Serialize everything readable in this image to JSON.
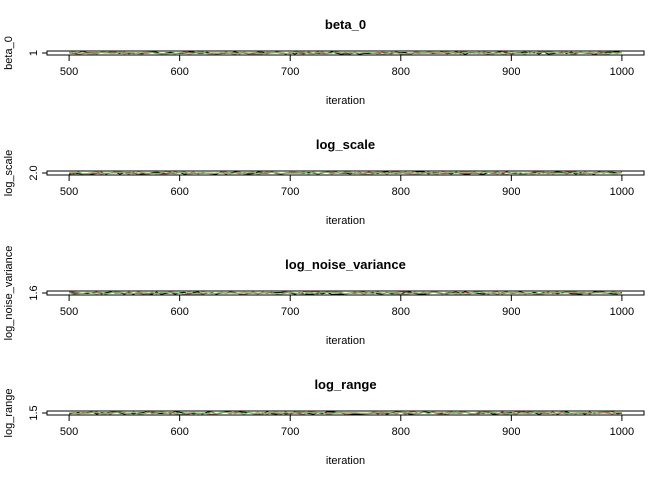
{
  "chart_data": [
    {
      "type": "line",
      "title": "beta_0",
      "xlabel": "iteration",
      "ylabel": "beta_0",
      "xlim": [
        480,
        1020
      ],
      "x_ticks": [
        "500",
        "600",
        "700",
        "800",
        "900",
        "1000"
      ],
      "y_ticks": [
        "1"
      ],
      "y_center": 1,
      "x_range": [
        500,
        1000
      ],
      "series_colors": [
        "#000000",
        "#DF536B",
        "#61D04F"
      ],
      "ylim": [
        0.99,
        1.01
      ]
    },
    {
      "type": "line",
      "title": "log_scale",
      "xlabel": "iteration",
      "ylabel": "log_scale",
      "xlim": [
        480,
        1020
      ],
      "x_ticks": [
        "500",
        "600",
        "700",
        "800",
        "900",
        "1000"
      ],
      "y_ticks": [
        "2.0"
      ],
      "y_center": 2.0,
      "x_range": [
        500,
        1000
      ],
      "series_colors": [
        "#000000",
        "#DF536B",
        "#61D04F"
      ],
      "ylim": [
        1.99,
        2.01
      ]
    },
    {
      "type": "line",
      "title": "log_noise_variance",
      "xlabel": "iteration",
      "ylabel": "log_noise_variance",
      "xlim": [
        480,
        1020
      ],
      "x_ticks": [
        "500",
        "600",
        "700",
        "800",
        "900",
        "1000"
      ],
      "y_ticks": [
        "1.6"
      ],
      "y_center": 1.6,
      "x_range": [
        500,
        1000
      ],
      "series_colors": [
        "#000000",
        "#DF536B",
        "#61D04F"
      ],
      "ylim": [
        1.59,
        1.61
      ]
    },
    {
      "type": "line",
      "title": "log_range",
      "xlabel": "iteration",
      "ylabel": "log_range",
      "xlim": [
        480,
        1020
      ],
      "x_ticks": [
        "500",
        "600",
        "700",
        "800",
        "900",
        "1000"
      ],
      "y_ticks": [
        "1.5"
      ],
      "y_center": 1.5,
      "x_range": [
        500,
        1000
      ],
      "series_colors": [
        "#000000",
        "#DF536B",
        "#61D04F"
      ],
      "ylim": [
        1.49,
        1.51
      ]
    }
  ]
}
